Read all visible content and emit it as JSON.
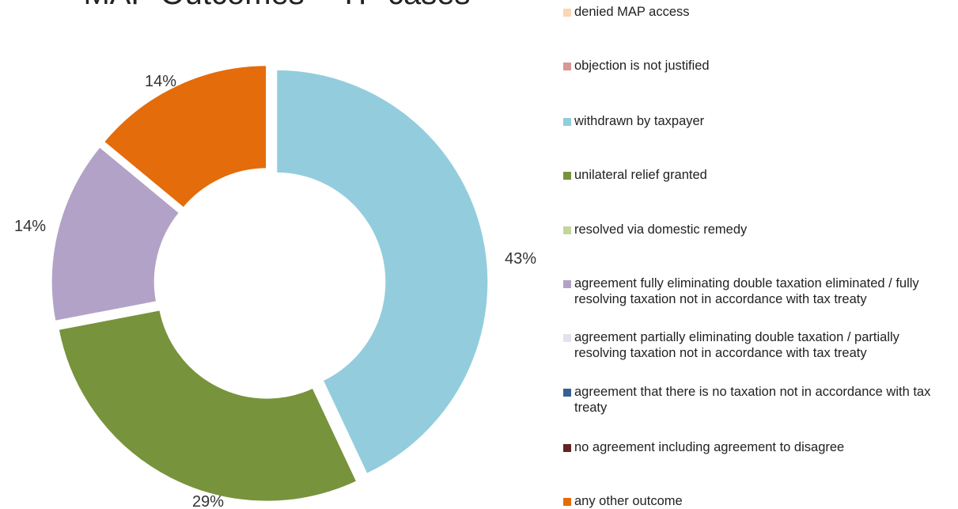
{
  "chart_data": {
    "type": "pie",
    "title": "MAP Outcomes – TP cases",
    "categories": [
      "denied MAP access",
      "objection is not justified",
      "withdrawn by taxpayer",
      "unilateral relief granted",
      "resolved via domestic remedy",
      "agreement fully eliminating double taxation eliminated / fully resolving taxation not in accordance with tax treaty",
      "agreement partially eliminating double taxation / partially resolving taxation not in accordance with tax treaty",
      "agreement that there is no taxation not in accordance with tax treaty",
      "no agreement including agreement to disagree",
      "any other outcome"
    ],
    "values": [
      0,
      0,
      43,
      29,
      0,
      14,
      0,
      0,
      0,
      14
    ],
    "value_labels": [
      "",
      "",
      "43%",
      "29%",
      "",
      "14%",
      "",
      "",
      "",
      "14%"
    ],
    "colors": [
      "#fcd5b4",
      "#d99694",
      "#93cddd",
      "#77933c",
      "#c3d69b",
      "#b3a2c7",
      "#e6e0ec",
      "#366092",
      "#632423",
      "#e46c0a"
    ],
    "legend_position": "right"
  }
}
